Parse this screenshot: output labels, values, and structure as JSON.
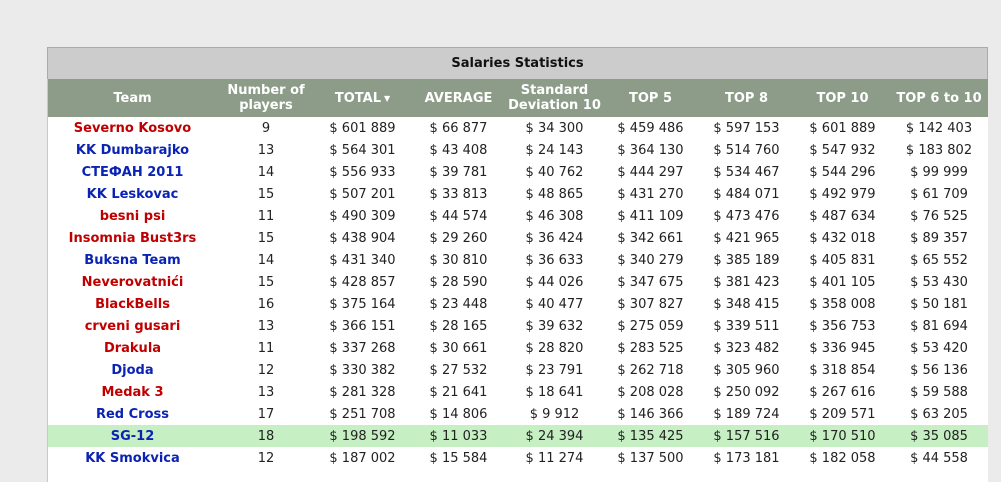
{
  "table": {
    "title": "Salaries Statistics",
    "columns": [
      "Team",
      "Number of players",
      "TOTAL",
      "AVERAGE",
      "Standard Deviation 10",
      "TOP 5",
      "TOP 8",
      "TOP 10",
      "TOP 6 to 10"
    ],
    "sorted_column": "TOTAL",
    "sort_icon": "▼",
    "team_colors": {
      "red": "#c00000",
      "blue": "#0a23b4"
    },
    "highlight_color": "#c6efc3",
    "rows": [
      {
        "team": "Severno Kosovo",
        "color": "red",
        "players": "9",
        "total": "$ 601 889",
        "average": "$ 66 877",
        "std10": "$ 34 300",
        "top5": "$ 459 486",
        "top8": "$ 597 153",
        "top10": "$ 601 889",
        "top6to10": "$ 142 403"
      },
      {
        "team": "KK Dumbarajko",
        "color": "blue",
        "players": "13",
        "total": "$ 564 301",
        "average": "$ 43 408",
        "std10": "$ 24 143",
        "top5": "$ 364 130",
        "top8": "$ 514 760",
        "top10": "$ 547 932",
        "top6to10": "$ 183 802"
      },
      {
        "team": "СТЕФАН 2011",
        "color": "blue",
        "players": "14",
        "total": "$ 556 933",
        "average": "$ 39 781",
        "std10": "$ 40 762",
        "top5": "$ 444 297",
        "top8": "$ 534 467",
        "top10": "$ 544 296",
        "top6to10": "$ 99 999"
      },
      {
        "team": "KK Leskovac",
        "color": "blue",
        "players": "15",
        "total": "$ 507 201",
        "average": "$ 33 813",
        "std10": "$ 48 865",
        "top5": "$ 431 270",
        "top8": "$ 484 071",
        "top10": "$ 492 979",
        "top6to10": "$ 61 709"
      },
      {
        "team": "besni psi",
        "color": "red",
        "players": "11",
        "total": "$ 490 309",
        "average": "$ 44 574",
        "std10": "$ 46 308",
        "top5": "$ 411 109",
        "top8": "$ 473 476",
        "top10": "$ 487 634",
        "top6to10": "$ 76 525"
      },
      {
        "team": "Insomnia Bust3rs",
        "color": "red",
        "players": "15",
        "total": "$ 438 904",
        "average": "$ 29 260",
        "std10": "$ 36 424",
        "top5": "$ 342 661",
        "top8": "$ 421 965",
        "top10": "$ 432 018",
        "top6to10": "$ 89 357"
      },
      {
        "team": "Buksna Team",
        "color": "blue",
        "players": "14",
        "total": "$ 431 340",
        "average": "$ 30 810",
        "std10": "$ 36 633",
        "top5": "$ 340 279",
        "top8": "$ 385 189",
        "top10": "$ 405 831",
        "top6to10": "$ 65 552"
      },
      {
        "team": "Neverovatnići",
        "color": "red",
        "players": "15",
        "total": "$ 428 857",
        "average": "$ 28 590",
        "std10": "$ 44 026",
        "top5": "$ 347 675",
        "top8": "$ 381 423",
        "top10": "$ 401 105",
        "top6to10": "$ 53 430"
      },
      {
        "team": "BlackBells",
        "color": "red",
        "players": "16",
        "total": "$ 375 164",
        "average": "$ 23 448",
        "std10": "$ 40 477",
        "top5": "$ 307 827",
        "top8": "$ 348 415",
        "top10": "$ 358 008",
        "top6to10": "$ 50 181"
      },
      {
        "team": "crveni gusari",
        "color": "red",
        "players": "13",
        "total": "$ 366 151",
        "average": "$ 28 165",
        "std10": "$ 39 632",
        "top5": "$ 275 059",
        "top8": "$ 339 511",
        "top10": "$ 356 753",
        "top6to10": "$ 81 694"
      },
      {
        "team": "Drakula",
        "color": "red",
        "players": "11",
        "total": "$ 337 268",
        "average": "$ 30 661",
        "std10": "$ 28 820",
        "top5": "$ 283 525",
        "top8": "$ 323 482",
        "top10": "$ 336 945",
        "top6to10": "$ 53 420"
      },
      {
        "team": "Djoda",
        "color": "blue",
        "players": "12",
        "total": "$ 330 382",
        "average": "$ 27 532",
        "std10": "$ 23 791",
        "top5": "$ 262 718",
        "top8": "$ 305 960",
        "top10": "$ 318 854",
        "top6to10": "$ 56 136"
      },
      {
        "team": "Medak 3",
        "color": "red",
        "players": "13",
        "total": "$ 281 328",
        "average": "$ 21 641",
        "std10": "$ 18 641",
        "top5": "$ 208 028",
        "top8": "$ 250 092",
        "top10": "$ 267 616",
        "top6to10": "$ 59 588"
      },
      {
        "team": "Red Cross",
        "color": "blue",
        "players": "17",
        "total": "$ 251 708",
        "average": "$ 14 806",
        "std10": "$ 9 912",
        "top5": "$ 146 366",
        "top8": "$ 189 724",
        "top10": "$ 209 571",
        "top6to10": "$ 63 205"
      },
      {
        "team": "SG-12",
        "color": "blue",
        "highlight": true,
        "players": "18",
        "total": "$ 198 592",
        "average": "$ 11 033",
        "std10": "$ 24 394",
        "top5": "$ 135 425",
        "top8": "$ 157 516",
        "top10": "$ 170 510",
        "top6to10": "$ 35 085"
      },
      {
        "team": "KK Smokvica",
        "color": "blue",
        "players": "12",
        "total": "$ 187 002",
        "average": "$ 15 584",
        "std10": "$ 11 274",
        "top5": "$ 137 500",
        "top8": "$ 173 181",
        "top10": "$ 182 058",
        "top6to10": "$ 44 558"
      }
    ]
  }
}
